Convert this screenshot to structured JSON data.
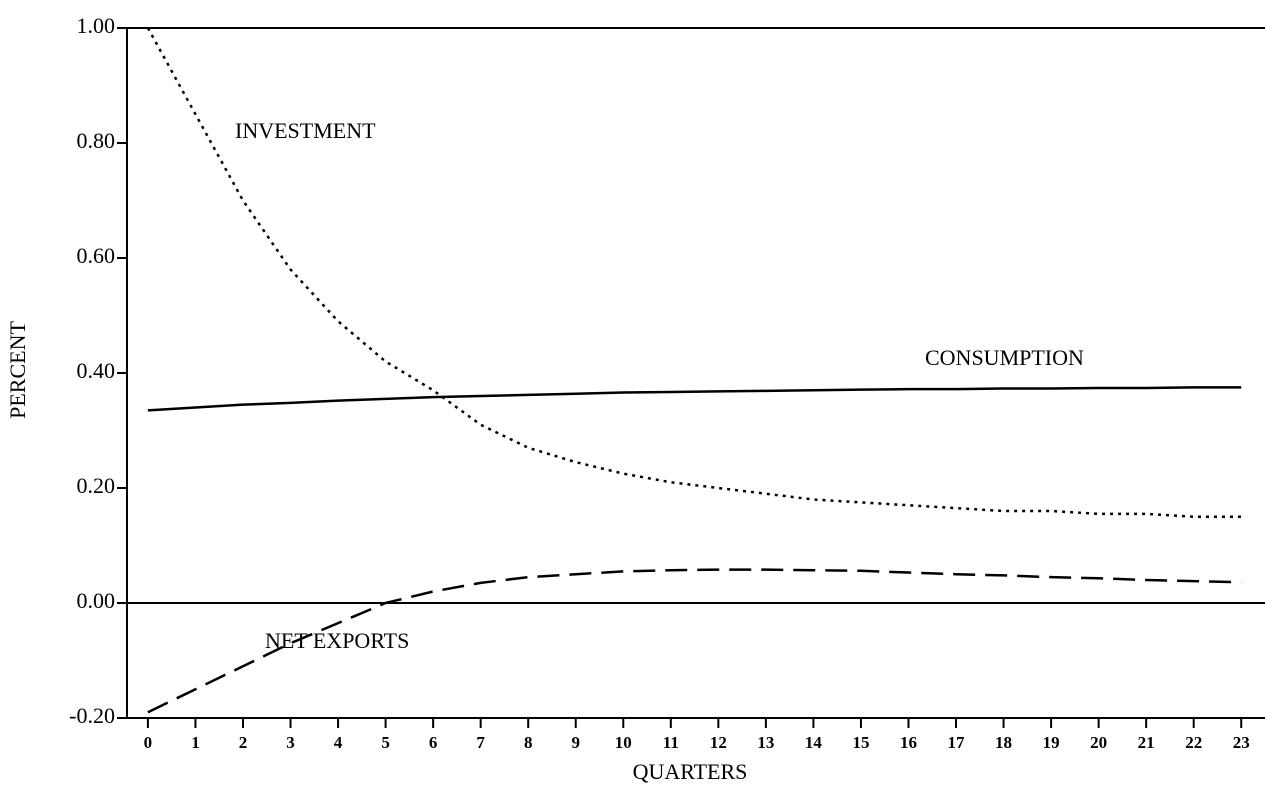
{
  "chart_data": {
    "type": "line",
    "xlabel": "QUARTERS",
    "ylabel": "PERCENT",
    "x": [
      0,
      1,
      2,
      3,
      4,
      5,
      6,
      7,
      8,
      9,
      10,
      11,
      12,
      13,
      14,
      15,
      16,
      17,
      18,
      19,
      20,
      21,
      22,
      23
    ],
    "series": [
      {
        "name": "INVESTMENT",
        "color": "#000000",
        "dash": "3,5",
        "values": [
          1.0,
          0.85,
          0.7,
          0.58,
          0.49,
          0.42,
          0.37,
          0.31,
          0.27,
          0.245,
          0.225,
          0.21,
          0.2,
          0.19,
          0.18,
          0.175,
          0.17,
          0.165,
          0.16,
          0.16,
          0.155,
          0.155,
          0.15,
          0.15
        ]
      },
      {
        "name": "CONSUMPTION",
        "color": "#000000",
        "dash": "none",
        "values": [
          0.335,
          0.34,
          0.345,
          0.348,
          0.352,
          0.355,
          0.358,
          0.36,
          0.362,
          0.364,
          0.366,
          0.367,
          0.368,
          0.369,
          0.37,
          0.371,
          0.372,
          0.372,
          0.373,
          0.373,
          0.374,
          0.374,
          0.375,
          0.375
        ]
      },
      {
        "name": "NET EXPORTS",
        "color": "#000000",
        "dash": "22,10",
        "values": [
          -0.19,
          -0.15,
          -0.11,
          -0.07,
          -0.035,
          0.0,
          0.02,
          0.035,
          0.045,
          0.05,
          0.055,
          0.057,
          0.058,
          0.058,
          0.057,
          0.056,
          0.053,
          0.05,
          0.048,
          0.045,
          0.043,
          0.04,
          0.038,
          0.036
        ]
      }
    ],
    "xlim": [
      -0.44,
      23.5
    ],
    "ylim": [
      -0.2,
      1.0
    ],
    "xticks": [
      0,
      1,
      2,
      3,
      4,
      5,
      6,
      7,
      8,
      9,
      10,
      11,
      12,
      13,
      14,
      15,
      16,
      17,
      18,
      19,
      20,
      21,
      22,
      23
    ],
    "yticks": [
      {
        "value": -0.2,
        "label": "-0.20"
      },
      {
        "value": 0,
        "label": "0.00"
      },
      {
        "value": 0.2,
        "label": "0.20"
      },
      {
        "value": 0.4,
        "label": "0.40"
      },
      {
        "value": 0.6,
        "label": "0.60"
      },
      {
        "value": 0.8,
        "label": "0.80"
      },
      {
        "value": 1.0,
        "label": "1.00"
      }
    ]
  }
}
